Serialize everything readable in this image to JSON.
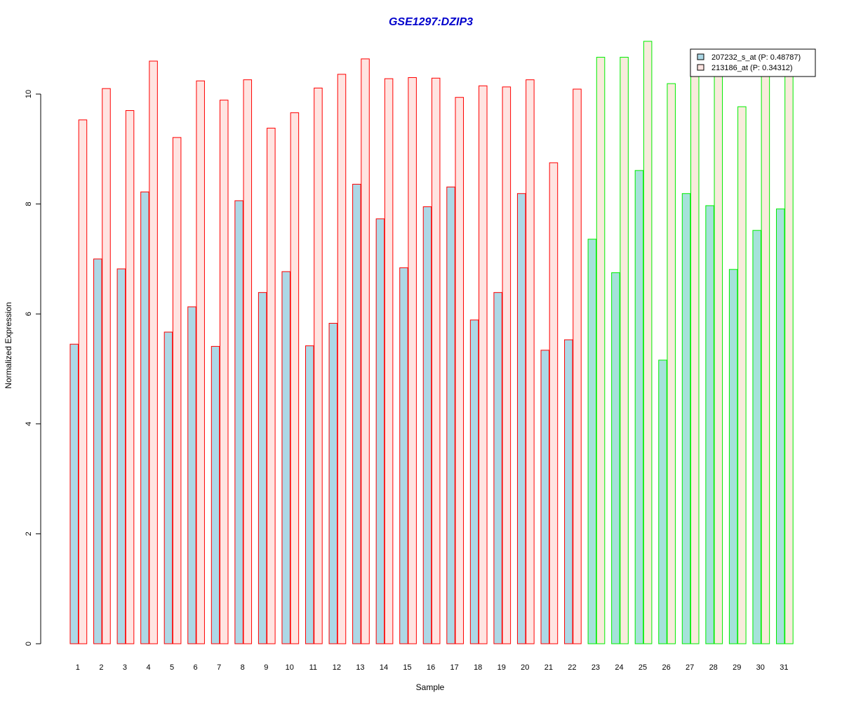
{
  "chart_data": {
    "type": "bar",
    "title": "GSE1297:DZIP3",
    "xlabel": "Sample",
    "ylabel": "Normalized Expression",
    "ylim": [
      0,
      11
    ],
    "yticks": [
      "0",
      "2",
      "4",
      "6",
      "8",
      "10"
    ],
    "grid": false,
    "legend_position": "top-right",
    "categories": [
      "1",
      "2",
      "3",
      "4",
      "5",
      "6",
      "7",
      "8",
      "9",
      "10",
      "11",
      "12",
      "13",
      "14",
      "15",
      "16",
      "17",
      "18",
      "19",
      "20",
      "21",
      "22",
      "23",
      "24",
      "25",
      "26",
      "27",
      "28",
      "29",
      "30",
      "31"
    ],
    "series": [
      {
        "name": "207232_s_at (P: 0.48787)",
        "values": [
          5.45,
          7.0,
          6.82,
          8.22,
          5.67,
          6.13,
          5.41,
          8.06,
          6.39,
          6.77,
          5.42,
          5.83,
          8.36,
          7.73,
          6.84,
          7.95,
          8.31,
          5.89,
          6.39,
          8.19,
          5.34,
          5.53,
          7.36,
          6.75,
          8.61,
          5.16,
          8.19,
          7.97,
          6.81,
          7.52,
          7.91
        ]
      },
      {
        "name": "213186_at (P: 0.34312)",
        "values": [
          9.53,
          10.1,
          9.7,
          10.6,
          9.21,
          10.24,
          9.89,
          10.26,
          9.38,
          9.66,
          10.11,
          10.36,
          10.64,
          10.28,
          10.3,
          10.29,
          9.94,
          10.15,
          10.13,
          10.26,
          8.75,
          10.09,
          10.67,
          10.67,
          10.96,
          10.19,
          10.41,
          10.41,
          9.77,
          10.41,
          10.41
        ]
      }
    ],
    "groups": [
      {
        "from": 1,
        "to": 22,
        "border_color": "#ff0000",
        "fill_colors": [
          "#add8e6",
          "#ffe4e1"
        ]
      },
      {
        "from": 23,
        "to": 31,
        "border_color": "#00ee00",
        "fill_colors": [
          "#a5e2da",
          "#f8ebdc"
        ]
      }
    ],
    "title_color": "#0000cc",
    "legend_swatches": [
      "#add8e6",
      "#ffe4e1"
    ]
  }
}
